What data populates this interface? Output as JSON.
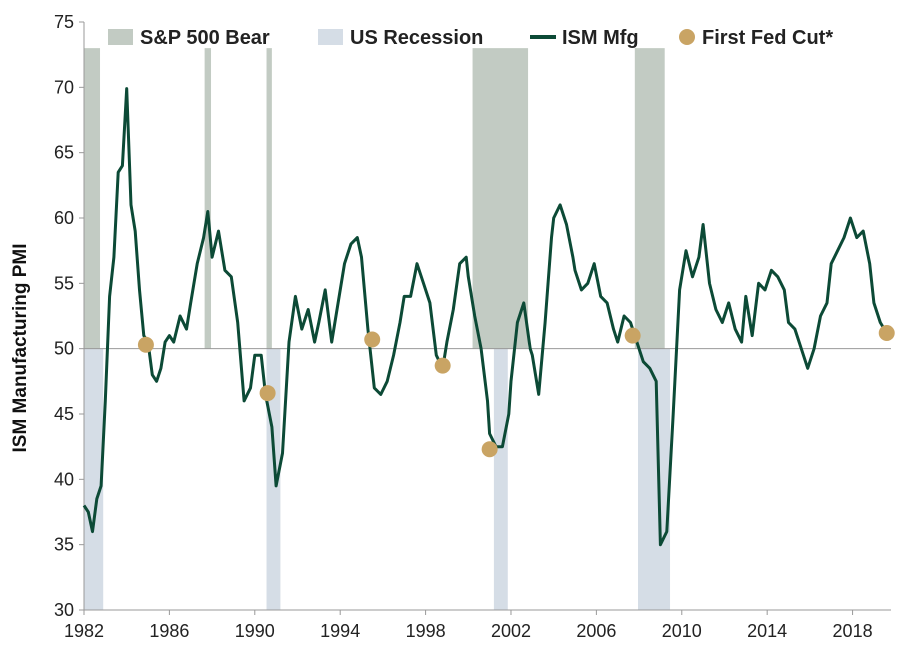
{
  "chart_data": {
    "type": "line",
    "ylabel": "ISM Manufacturing PMI",
    "xlabel": "",
    "xlim": [
      1982,
      2019.8
    ],
    "ylim": [
      30,
      75
    ],
    "x_ticks": [
      1982,
      1986,
      1990,
      1994,
      1998,
      2002,
      2006,
      2010,
      2014,
      2018
    ],
    "y_ticks": [
      30,
      35,
      40,
      45,
      50,
      55,
      60,
      65,
      70,
      75
    ],
    "reference_line": 50,
    "colors": {
      "bear": "#c2cbc3",
      "recession": "#d5dde6",
      "line": "#0c4a36",
      "fed_cut": "#c9a464",
      "axis": "#999999"
    },
    "legend": [
      {
        "type": "bear",
        "label": "S&P 500 Bear"
      },
      {
        "type": "recession",
        "label": "US Recession"
      },
      {
        "type": "line",
        "label": "ISM Mfg"
      },
      {
        "type": "fed_cut",
        "label": "First Fed Cut*"
      }
    ],
    "bear_markets": [
      [
        1982.0,
        1982.75
      ],
      [
        1987.65,
        1987.95
      ],
      [
        1990.55,
        1990.8
      ],
      [
        2000.2,
        2002.8
      ],
      [
        2007.8,
        2009.2
      ]
    ],
    "recessions": [
      [
        1982.0,
        1982.9
      ],
      [
        1990.55,
        1991.2
      ],
      [
        2001.2,
        2001.85
      ],
      [
        2007.95,
        2009.45
      ]
    ],
    "series": [
      {
        "name": "ISM Mfg",
        "x": [
          1982.0,
          1982.2,
          1982.4,
          1982.6,
          1982.8,
          1983.0,
          1983.2,
          1983.4,
          1983.6,
          1983.8,
          1984.0,
          1984.2,
          1984.4,
          1984.6,
          1984.8,
          1985.0,
          1985.2,
          1985.4,
          1985.6,
          1985.8,
          1986.0,
          1986.2,
          1986.5,
          1986.8,
          1987.0,
          1987.3,
          1987.6,
          1987.8,
          1988.0,
          1988.3,
          1988.6,
          1988.9,
          1989.2,
          1989.5,
          1989.8,
          1990.0,
          1990.3,
          1990.5,
          1990.8,
          1991.0,
          1991.3,
          1991.6,
          1991.9,
          1992.2,
          1992.5,
          1992.8,
          1993.0,
          1993.3,
          1993.6,
          1993.9,
          1994.2,
          1994.5,
          1994.8,
          1995.0,
          1995.3,
          1995.6,
          1995.9,
          1996.2,
          1996.5,
          1996.8,
          1997.0,
          1997.3,
          1997.6,
          1997.9,
          1998.2,
          1998.5,
          1998.8,
          1999.0,
          1999.3,
          1999.6,
          1999.9,
          2000.0,
          2000.3,
          2000.6,
          2000.9,
          2001.0,
          2001.3,
          2001.6,
          2001.9,
          2002.0,
          2002.3,
          2002.6,
          2002.9,
          2003.0,
          2003.3,
          2003.6,
          2003.9,
          2004.0,
          2004.3,
          2004.6,
          2004.9,
          2005.0,
          2005.3,
          2005.6,
          2005.9,
          2006.2,
          2006.5,
          2006.8,
          2007.0,
          2007.3,
          2007.6,
          2007.9,
          2008.2,
          2008.5,
          2008.8,
          2009.0,
          2009.3,
          2009.6,
          2009.9,
          2010.2,
          2010.5,
          2010.8,
          2011.0,
          2011.3,
          2011.6,
          2011.9,
          2012.2,
          2012.5,
          2012.8,
          2013.0,
          2013.3,
          2013.6,
          2013.9,
          2014.2,
          2014.5,
          2014.8,
          2015.0,
          2015.3,
          2015.6,
          2015.9,
          2016.2,
          2016.5,
          2016.8,
          2017.0,
          2017.3,
          2017.6,
          2017.9,
          2018.2,
          2018.5,
          2018.8,
          2019.0,
          2019.3,
          2019.6
        ],
        "values": [
          38.0,
          37.5,
          36.0,
          38.5,
          39.5,
          46.0,
          54.0,
          57.0,
          63.5,
          64.0,
          69.9,
          61.0,
          59.0,
          54.5,
          51.0,
          50.5,
          48.0,
          47.5,
          48.5,
          50.5,
          51.0,
          50.5,
          52.5,
          51.5,
          53.5,
          56.5,
          58.5,
          60.5,
          57.0,
          59.0,
          56.0,
          55.5,
          52.0,
          46.0,
          47.0,
          49.5,
          49.5,
          46.5,
          44.0,
          39.5,
          42.0,
          50.5,
          54.0,
          51.5,
          53.0,
          50.5,
          52.0,
          54.5,
          50.5,
          53.5,
          56.5,
          58.0,
          58.5,
          57.0,
          51.5,
          47.0,
          46.5,
          47.5,
          49.5,
          52.0,
          54.0,
          54.0,
          56.5,
          55.0,
          53.5,
          49.5,
          48.5,
          50.5,
          53.0,
          56.5,
          57.0,
          55.5,
          52.5,
          50.0,
          46.0,
          43.5,
          42.5,
          42.5,
          45.0,
          47.5,
          52.0,
          53.5,
          50.0,
          49.5,
          46.5,
          52.0,
          58.5,
          60.0,
          61.0,
          59.5,
          57.0,
          56.0,
          54.5,
          55.0,
          56.5,
          54.0,
          53.5,
          51.5,
          50.5,
          52.5,
          52.0,
          50.5,
          49.0,
          48.5,
          47.5,
          35.0,
          36.0,
          45.0,
          54.5,
          57.5,
          55.5,
          57.0,
          59.5,
          55.0,
          53.0,
          52.0,
          53.5,
          51.5,
          50.5,
          54.0,
          51.0,
          55.0,
          54.5,
          56.0,
          55.5,
          54.5,
          52.0,
          51.5,
          50.0,
          48.5,
          50.0,
          52.5,
          53.5,
          56.5,
          57.5,
          58.5,
          60.0,
          58.5,
          59.0,
          56.5,
          53.5,
          52.0,
          51.2
        ]
      }
    ],
    "first_fed_cuts": [
      {
        "x": 1984.9,
        "y": 50.3
      },
      {
        "x": 1990.6,
        "y": 46.6
      },
      {
        "x": 1995.5,
        "y": 50.7
      },
      {
        "x": 1998.8,
        "y": 48.7
      },
      {
        "x": 2001.0,
        "y": 42.3
      },
      {
        "x": 2007.7,
        "y": 51.0
      },
      {
        "x": 2019.6,
        "y": 51.2
      }
    ]
  }
}
